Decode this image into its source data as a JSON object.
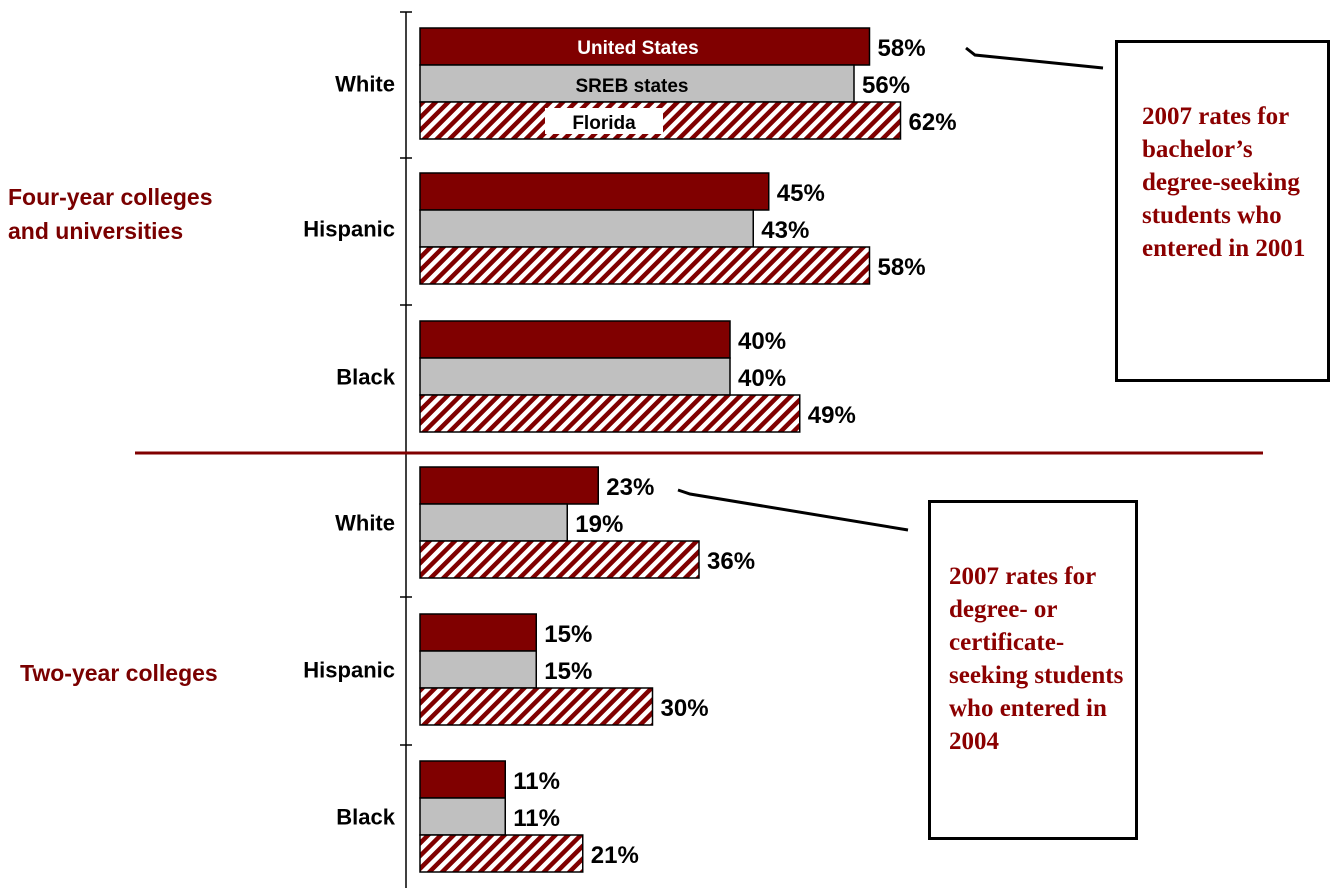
{
  "colors": {
    "united_states": "#800000",
    "sreb": "#c0c0c0",
    "florida_stripe": "#800000",
    "section_text": "#7a0000",
    "note_text": "#8b0000",
    "divider": "#800000"
  },
  "notes": {
    "four_year": "2007 rates for bachelor’s degree-seeking students who entered in 2001",
    "two_year": "2007 rates for degree- or certificate-seeking students who entered in 2004"
  },
  "chart_data": {
    "type": "bar",
    "orientation": "horizontal",
    "value_suffix": "%",
    "xlim": [
      0,
      100
    ],
    "legend": "in-bar labels on first group",
    "series_names": [
      "United States",
      "SREB states",
      "Florida"
    ],
    "sections": [
      {
        "label": "Four-year colleges and universities",
        "note": "2007 rates for bachelor’s degree-seeking students who entered in 2001",
        "groups": [
          {
            "category": "White",
            "values": [
              58,
              56,
              62
            ]
          },
          {
            "category": "Hispanic",
            "values": [
              45,
              43,
              58
            ]
          },
          {
            "category": "Black",
            "values": [
              40,
              40,
              49
            ]
          }
        ]
      },
      {
        "label": "Two-year colleges",
        "note": "2007 rates for degree- or certificate-seeking students who entered in 2004",
        "groups": [
          {
            "category": "White",
            "values": [
              23,
              19,
              36
            ]
          },
          {
            "category": "Hispanic",
            "values": [
              15,
              15,
              30
            ]
          },
          {
            "category": "Black",
            "values": [
              11,
              11,
              21
            ]
          }
        ]
      }
    ]
  }
}
